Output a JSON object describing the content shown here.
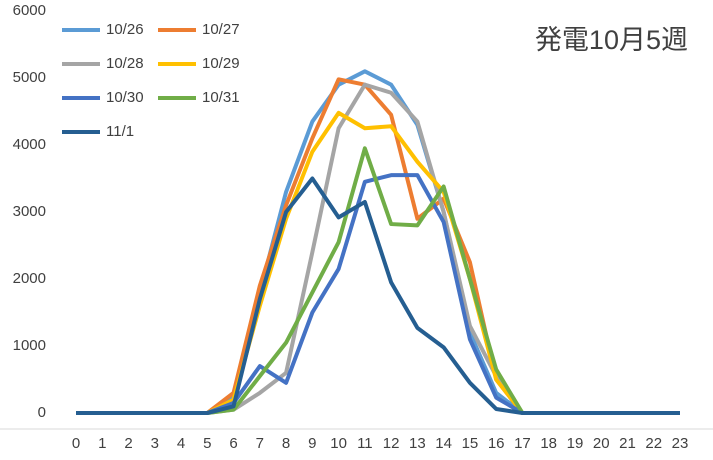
{
  "chart_data": {
    "type": "line",
    "title": "発電10月5週",
    "categories": [
      "0",
      "1",
      "2",
      "3",
      "4",
      "5",
      "6",
      "7",
      "8",
      "9",
      "10",
      "11",
      "12",
      "13",
      "14",
      "15",
      "16",
      "17",
      "18",
      "19",
      "20",
      "21",
      "22",
      "23"
    ],
    "ylim": [
      0,
      6000
    ],
    "yticks": [
      0,
      1000,
      2000,
      3000,
      4000,
      5000,
      6000
    ],
    "grid": false,
    "series": [
      {
        "name": "10/26",
        "color": "#5b9bd5",
        "values": [
          0,
          0,
          0,
          0,
          0,
          0,
          250,
          1800,
          3300,
          4350,
          4900,
          5100,
          4900,
          4300,
          3000,
          1200,
          300,
          0,
          0,
          0,
          0,
          0,
          0,
          0
        ]
      },
      {
        "name": "10/27",
        "color": "#ed7d31",
        "values": [
          0,
          0,
          0,
          0,
          0,
          0,
          300,
          1900,
          3100,
          4100,
          4980,
          4900,
          4450,
          2900,
          3200,
          2250,
          500,
          0,
          0,
          0,
          0,
          0,
          0,
          0
        ]
      },
      {
        "name": "10/28",
        "color": "#a5a5a5",
        "values": [
          0,
          0,
          0,
          0,
          0,
          0,
          50,
          300,
          600,
          2400,
          4250,
          4900,
          4780,
          4350,
          3000,
          1300,
          550,
          0,
          0,
          0,
          0,
          0,
          0,
          0
        ]
      },
      {
        "name": "10/29",
        "color": "#ffc000",
        "values": [
          0,
          0,
          0,
          0,
          0,
          0,
          200,
          1600,
          2900,
          3900,
          4480,
          4250,
          4280,
          3750,
          3300,
          2000,
          500,
          0,
          0,
          0,
          0,
          0,
          0,
          0
        ]
      },
      {
        "name": "10/30",
        "color": "#4472c4",
        "values": [
          0,
          0,
          0,
          0,
          0,
          0,
          150,
          700,
          450,
          1500,
          2150,
          3450,
          3550,
          3550,
          2850,
          1100,
          230,
          0,
          0,
          0,
          0,
          0,
          0,
          0
        ]
      },
      {
        "name": "10/31",
        "color": "#70ad47",
        "values": [
          0,
          0,
          0,
          0,
          0,
          0,
          50,
          550,
          1050,
          1800,
          2550,
          3950,
          2820,
          2800,
          3380,
          2000,
          650,
          0,
          0,
          0,
          0,
          0,
          0,
          0
        ]
      },
      {
        "name": "11/1",
        "color": "#255e91",
        "values": [
          0,
          0,
          0,
          0,
          0,
          0,
          100,
          1700,
          3000,
          3500,
          2920,
          3150,
          1950,
          1270,
          980,
          450,
          60,
          0,
          0,
          0,
          0,
          0,
          0,
          0
        ]
      }
    ]
  }
}
